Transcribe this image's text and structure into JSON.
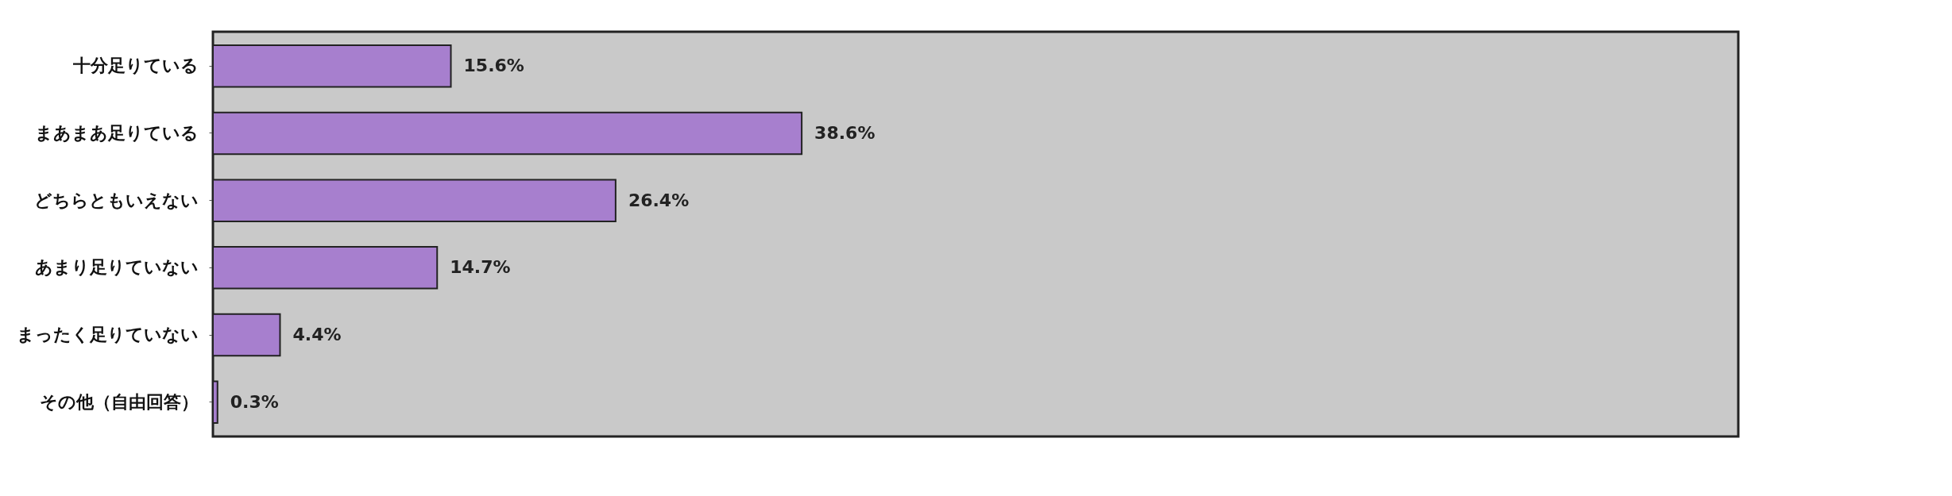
{
  "chart_data": {
    "type": "bar",
    "orientation": "horizontal",
    "categories": [
      "十分足りている",
      "まあまあ足りている",
      "どちらともいえない",
      "あまり足りていない",
      "まったく足りていない",
      "その他（自由回答）"
    ],
    "values": [
      15.6,
      38.6,
      26.4,
      14.7,
      4.4,
      0.3
    ],
    "value_labels": [
      "15.6%",
      "38.6%",
      "26.4%",
      "14.7%",
      "4.4%",
      "0.3%"
    ],
    "color": "#a77fce",
    "xlim": [
      0,
      100
    ],
    "tick_labels": "y"
  }
}
